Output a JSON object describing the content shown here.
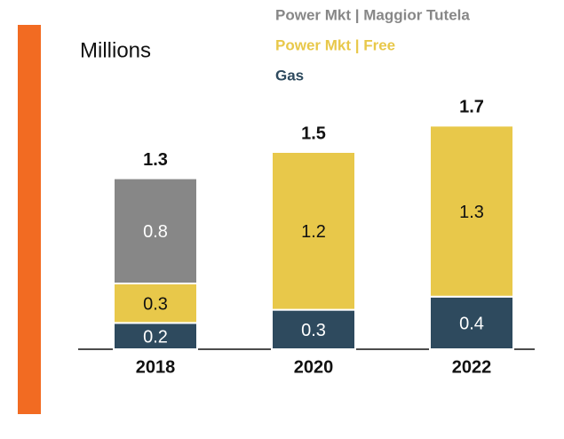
{
  "chart_data": {
    "type": "stacked_bar",
    "unit_label": "Millions",
    "categories": [
      "2018",
      "2020",
      "2022"
    ],
    "series": [
      {
        "name": "Gas",
        "color": "#2e4a5e",
        "label_color": "#ffffff",
        "values": [
          0.2,
          0.3,
          0.4
        ]
      },
      {
        "name": "Power Mkt | Free",
        "color": "#e8c84a",
        "label_color": "#111111",
        "values": [
          0.3,
          1.2,
          1.3
        ]
      },
      {
        "name": "Power Mkt | Maggior Tutela",
        "color": "#878787",
        "label_color": "#ffffff",
        "values": [
          0.8,
          null,
          null
        ]
      }
    ],
    "totals": [
      1.3,
      1.5,
      1.7
    ],
    "accent_color": "#f26b22"
  }
}
